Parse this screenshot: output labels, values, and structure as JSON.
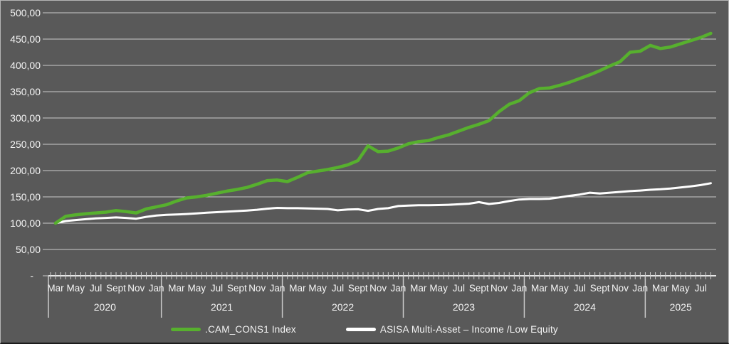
{
  "chart_data": {
    "type": "line",
    "x_start": "Mar 2020",
    "x_end": "Aug 2025",
    "x_frequency": "monthly",
    "ylim": [
      0,
      500
    ],
    "y_gridline_step": 50,
    "grid": true,
    "legend_position": "bottom-center",
    "series": [
      {
        "name": ".CAM_CONS1 Index",
        "color": "#57b02e",
        "values": [
          100,
          113,
          116,
          118,
          119.5,
          121,
          124,
          122,
          119.5,
          127,
          131,
          135,
          142,
          148,
          150,
          153,
          157,
          161,
          164,
          168,
          174,
          181,
          182,
          179,
          187,
          196,
          199,
          202,
          206,
          211,
          219,
          247,
          236,
          237,
          243,
          251,
          255,
          257,
          263,
          268,
          275,
          282,
          288,
          295,
          312,
          326,
          333,
          348,
          356,
          357,
          362,
          368,
          375,
          382,
          390,
          399,
          407,
          425,
          427,
          438,
          432,
          435,
          441,
          447,
          453,
          461
        ]
      },
      {
        "name": "ASISA  Multi-Asset – Income /Low Equity",
        "color": "#ffffff",
        "values": [
          100,
          104,
          106,
          107.5,
          109,
          110,
          111,
          110,
          108.5,
          112,
          114.5,
          116,
          116.5,
          117.5,
          118.5,
          120,
          121,
          122,
          123,
          124,
          125.5,
          127.5,
          129,
          128.5,
          128.5,
          128,
          127.5,
          127,
          124.5,
          126,
          126.5,
          123.5,
          127,
          128.5,
          132.5,
          133.5,
          134,
          134,
          134.5,
          135,
          136,
          137,
          140,
          136.5,
          138.5,
          142,
          145,
          146,
          146,
          146.5,
          149,
          152,
          154.5,
          158,
          156.5,
          158,
          159.5,
          161,
          162,
          163.5,
          164.5,
          166,
          168,
          170,
          172.5,
          176
        ]
      }
    ]
  },
  "y_axis": {
    "tick_labels": [
      "500,00",
      "450,00",
      "400,00",
      "350,00",
      "300,00",
      "250,00",
      "200,00",
      "150,00",
      "100,00",
      "50,00"
    ],
    "zero_label": "-"
  },
  "x_axis": {
    "year_groups": [
      {
        "year": "2020",
        "months": [
          "Mar",
          "May",
          "Jul",
          "Sept",
          "Nov",
          "Jan"
        ]
      },
      {
        "year": "2021",
        "months": [
          "Mar",
          "May",
          "Jul",
          "Sept",
          "Nov",
          "Jan"
        ]
      },
      {
        "year": "2022",
        "months": [
          "Mar",
          "May",
          "Jul",
          "Sept",
          "Nov",
          "Jan"
        ]
      },
      {
        "year": "2023",
        "months": [
          "Mar",
          "May",
          "Jul",
          "Sept",
          "Nov",
          "Jan"
        ]
      },
      {
        "year": "2024",
        "months": [
          "Mar",
          "May",
          "Jul",
          "Sept",
          "Nov",
          "Jan"
        ]
      },
      {
        "year": "2025",
        "months": [
          "Mar",
          "May",
          "Jul"
        ]
      }
    ]
  },
  "legend": {
    "items": [
      {
        "label": ".CAM_CONS1 Index",
        "color": "#57b02e"
      },
      {
        "label": "ASISA  Multi-Asset – Income /Low Equity",
        "color": "#ffffff"
      }
    ]
  },
  "colors": {
    "background": "#595959",
    "gridline": "#cbcbcb",
    "axis": "#e8e8e8",
    "text": "#f4f4f4"
  }
}
